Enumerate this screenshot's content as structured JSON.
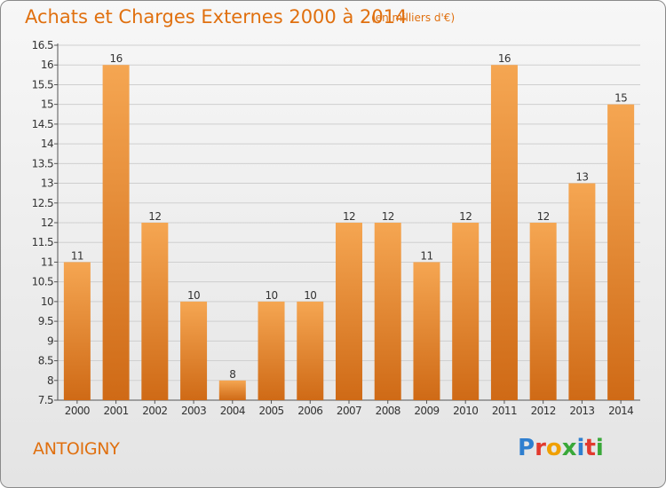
{
  "header": {
    "title": "Achats et Charges Externes 2000 à 2014",
    "unit": "(en milliers d'€)"
  },
  "commune": "ANTOIGNY",
  "logo": {
    "text": "Proxiti"
  },
  "colors": {
    "accent": "#e0700f",
    "bar_light": "#f4a04f",
    "bar_dark": "#d06a17"
  },
  "chart_data": {
    "type": "bar",
    "title": "Achats et Charges Externes 2000 à 2014",
    "categories": [
      "2000",
      "2001",
      "2002",
      "2003",
      "2004",
      "2005",
      "2006",
      "2007",
      "2008",
      "2009",
      "2010",
      "2011",
      "2012",
      "2013",
      "2014"
    ],
    "values": [
      11,
      16,
      12,
      10,
      8,
      10,
      10,
      12,
      12,
      11,
      12,
      16,
      12,
      13,
      15
    ],
    "ylim": [
      7.5,
      16.5
    ],
    "yticks": [
      "7.5",
      "8",
      "8.5",
      "9",
      "9.5",
      "10",
      "10.5",
      "11",
      "11.5",
      "12",
      "12.5",
      "13",
      "13.5",
      "14",
      "14.5",
      "15",
      "15.5",
      "16",
      "16.5"
    ],
    "grid": true,
    "xlabel": "",
    "ylabel": ""
  }
}
